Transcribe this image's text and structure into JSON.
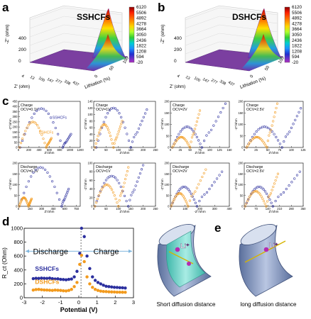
{
  "panel_labels": {
    "a": "a",
    "b": "b",
    "c": "c",
    "d": "d",
    "e": "e"
  },
  "colors": {
    "sshcfs": "#2b2f9e",
    "dshcfs": "#f29a1d",
    "surface": "#7b3fa0",
    "tube": "#8ea0c4",
    "tube_inner": "#6fd3c8",
    "arrow": "#7fb6de",
    "ion": "#b52bb0"
  },
  "surface_plots": [
    {
      "id": "a",
      "title": "SSHCFs",
      "zlabel": "-Z'' (ohm)",
      "zticks": [
        "0",
        "200",
        "400"
      ],
      "ylabel": "Z' (ohm)",
      "yticks": [
        "4",
        "13",
        "100",
        "147",
        "277",
        "338",
        "437"
      ],
      "xlabel": "Lithiation (%)",
      "xticks": [
        "0",
        "50",
        "100"
      ]
    },
    {
      "id": "b",
      "title": "DSHCFs",
      "zlabel": "-Z'' (ohm)",
      "zticks": [
        "0",
        "200",
        "400"
      ],
      "ylabel": "Z' (ohm)",
      "yticks": [
        "4",
        "13",
        "100",
        "147",
        "277",
        "338",
        "437"
      ],
      "xlabel": "Lithiation (%)",
      "xticks": [
        "0",
        "50",
        "100"
      ]
    }
  ],
  "colorbar": {
    "ticks": [
      "6120",
      "5506",
      "4892",
      "4278",
      "3664",
      "3050",
      "2436",
      "1822",
      "1208",
      "594",
      "-20"
    ],
    "colors": [
      "#8b0000",
      "#ff2000",
      "#ff8c00",
      "#ffd700",
      "#adff2f",
      "#32cd32",
      "#00ced1",
      "#1e90ff",
      "#2030d0",
      "#7b2bc0",
      "#b030c0"
    ]
  },
  "chart_data": [
    {
      "type": "scatter",
      "panel": "c1",
      "title": "Charge",
      "subtitle": "OCV=0.1V",
      "legend": [
        "SSHCFs",
        "DSHCFs"
      ],
      "xlabel": "Z'/ohm",
      "ylabel": "-Z''/ohm",
      "xlim": [
        0,
        1200
      ],
      "ylim": [
        0,
        450
      ],
      "xticks": [
        0,
        200,
        400,
        600,
        800,
        1000,
        1200
      ],
      "yticks": [
        0,
        50,
        100,
        150,
        200,
        250,
        300,
        350,
        400,
        450
      ],
      "series": [
        {
          "name": "SSHCFs",
          "arcs": [
            [
              30,
              860,
              380
            ],
            [
              860,
              1020,
              130
            ]
          ]
        },
        {
          "name": "DSHCFs",
          "arcs": [
            [
              20,
              540,
              250
            ],
            [
              540,
              640,
              90
            ]
          ]
        }
      ]
    },
    {
      "type": "scatter",
      "panel": "c2",
      "title": "Charge",
      "subtitle": "OCV=1V",
      "xlabel": "Z'/ohm",
      "ylabel": "-Z''/ohm",
      "xlim": [
        0,
        250
      ],
      "ylim": [
        0,
        140
      ],
      "xticks": [
        0,
        50,
        100,
        150,
        200,
        250
      ],
      "yticks": [
        0,
        20,
        40,
        60,
        80,
        100,
        120,
        140
      ],
      "series": [
        {
          "name": "SSHCFs",
          "arcs": [
            [
              10,
              150,
              120
            ],
            [
              150,
              215,
              115
            ]
          ]
        },
        {
          "name": "DSHCFs",
          "arcs": [
            [
              5,
              80,
              70
            ],
            [
              80,
              115,
              80
            ]
          ]
        }
      ]
    },
    {
      "type": "scatter",
      "panel": "c3",
      "title": "Charge",
      "subtitle": "OCV=2V",
      "xlabel": "Z'/ohm",
      "ylabel": "-Z''/ohm",
      "xlim": [
        0,
        150
      ],
      "ylim": [
        0,
        200
      ],
      "xticks": [
        0,
        25,
        50,
        75,
        100,
        125,
        150
      ],
      "yticks": [
        0,
        50,
        100,
        150,
        200
      ],
      "series": [
        {
          "name": "SSHCFs",
          "arcs": [
            [
              5,
              80,
              90
            ],
            [
              80,
              140,
              190
            ]
          ]
        },
        {
          "name": "DSHCFs",
          "arcs": [
            [
              5,
              50,
              45
            ],
            [
              50,
              75,
              160
            ]
          ]
        }
      ]
    },
    {
      "type": "scatter",
      "panel": "c4",
      "title": "Charge",
      "subtitle": "OCV=2.5V",
      "xlabel": "Z'/ohm",
      "ylabel": "-Z''/ohm",
      "xlim": [
        0,
        125
      ],
      "ylim": [
        0,
        200
      ],
      "xticks": [
        0,
        25,
        50,
        75,
        100,
        125
      ],
      "yticks": [
        0,
        50,
        100,
        150,
        200
      ],
      "series": [
        {
          "name": "SSHCFs",
          "arcs": [
            [
              5,
              80,
              90
            ],
            [
              80,
              120,
              170
            ]
          ]
        },
        {
          "name": "DSHCFs",
          "arcs": [
            [
              5,
              48,
              45
            ],
            [
              48,
              70,
              190
            ]
          ]
        }
      ]
    },
    {
      "type": "scatter",
      "panel": "c5",
      "title": "Discharge",
      "subtitle": "OCV=0.1V",
      "xlabel": "Z'/ohm",
      "ylabel": "-Z''/ohm",
      "xlim": [
        0,
        800
      ],
      "ylim": [
        0,
        200
      ],
      "xticks": [
        0,
        150,
        300,
        450,
        600,
        750
      ],
      "yticks": [
        0,
        50,
        100,
        150,
        200
      ],
      "series": [
        {
          "name": "SSHCFs",
          "arcs": [
            [
              10,
              560,
              180
            ],
            [
              560,
              650,
              80
            ]
          ]
        },
        {
          "name": "DSHCFs",
          "arcs": [
            [
              10,
              130,
              40
            ],
            [
              130,
              170,
              35
            ]
          ]
        }
      ]
    },
    {
      "type": "scatter",
      "panel": "c6",
      "title": "Discharge",
      "subtitle": "OCV=1V",
      "xlabel": "Z'/ohm",
      "ylabel": "-Z''/ohm",
      "xlim": [
        0,
        250
      ],
      "ylim": [
        0,
        100
      ],
      "xticks": [
        0,
        50,
        100,
        150,
        200,
        250
      ],
      "yticks": [
        0,
        20,
        40,
        60,
        80,
        100
      ],
      "series": [
        {
          "name": "SSHCFs",
          "arcs": [
            [
              5,
              140,
              70
            ],
            [
              140,
              200,
              95
            ]
          ]
        },
        {
          "name": "DSHCFs",
          "arcs": [
            [
              5,
              100,
              50
            ],
            [
              100,
              140,
              90
            ]
          ]
        }
      ]
    },
    {
      "type": "scatter",
      "panel": "c7",
      "title": "Discharge",
      "subtitle": "OCV=2V",
      "xlabel": "-Z''/ohm",
      "ylabel": "-Z''/ohm",
      "xlim": [
        0,
        400
      ],
      "ylim": [
        0,
        200
      ],
      "xticks": [
        0,
        100,
        200,
        300,
        400
      ],
      "yticks": [
        0,
        50,
        100,
        150,
        200
      ],
      "series": [
        {
          "name": "SSHCFs",
          "arcs": [
            [
              5,
              180,
              90
            ],
            [
              180,
              350,
              160
            ]
          ]
        },
        {
          "name": "DSHCFs",
          "arcs": [
            [
              5,
              120,
              60
            ],
            [
              120,
              240,
              170
            ]
          ]
        }
      ]
    },
    {
      "type": "scatter",
      "panel": "c8",
      "title": "Discharge",
      "subtitle": "OCV=2.5V",
      "xlabel": "Z'/ohm",
      "ylabel": "-Z''/ohm",
      "xlim": [
        0,
        350
      ],
      "ylim": [
        0,
        200
      ],
      "xticks": [
        0,
        70,
        140,
        210,
        280,
        350
      ],
      "yticks": [
        0,
        50,
        100,
        150,
        200
      ],
      "series": [
        {
          "name": "SSHCFs",
          "arcs": [
            [
              5,
              170,
              90
            ],
            [
              170,
              330,
              160
            ]
          ]
        },
        {
          "name": "DSHCFs",
          "arcs": [
            [
              5,
              130,
              70
            ],
            [
              130,
              200,
              150
            ]
          ]
        }
      ]
    },
    {
      "type": "scatter",
      "panel": "d",
      "xlabel": "Potential (V)",
      "ylabel": "R_ct (Ohm)",
      "xlim": [
        -3,
        3
      ],
      "ylim": [
        0,
        1000
      ],
      "xticks": [
        -3,
        -2,
        -1,
        0,
        1,
        2,
        3
      ],
      "yticks": [
        0,
        200,
        400,
        600,
        800,
        1000
      ],
      "annotations": [
        "Discharge",
        "Charge"
      ],
      "series": [
        {
          "name": "SSHCFs",
          "points": [
            [
              -2.5,
              275
            ],
            [
              -2.35,
              280
            ],
            [
              -2.2,
              278
            ],
            [
              -2.05,
              283
            ],
            [
              -1.9,
              280
            ],
            [
              -1.75,
              278
            ],
            [
              -1.6,
              282
            ],
            [
              -1.45,
              275
            ],
            [
              -1.3,
              270
            ],
            [
              -1.15,
              272
            ],
            [
              -1.0,
              265
            ],
            [
              -0.85,
              262
            ],
            [
              -0.7,
              258
            ],
            [
              -0.55,
              265
            ],
            [
              -0.4,
              270
            ],
            [
              -0.25,
              300
            ],
            [
              -0.1,
              380
            ],
            [
              0.05,
              640
            ],
            [
              0.15,
              1000
            ],
            [
              0.3,
              880
            ],
            [
              0.45,
              600
            ],
            [
              0.6,
              420
            ],
            [
              0.75,
              300
            ],
            [
              0.9,
              250
            ],
            [
              1.05,
              220
            ],
            [
              1.2,
              200
            ],
            [
              1.35,
              180
            ],
            [
              1.5,
              165
            ],
            [
              1.65,
              160
            ],
            [
              1.8,
              155
            ],
            [
              1.95,
              150
            ],
            [
              2.1,
              148
            ],
            [
              2.25,
              145
            ],
            [
              2.4,
              143
            ],
            [
              2.55,
              140
            ]
          ]
        },
        {
          "name": "DSHCFs",
          "points": [
            [
              -2.5,
              110
            ],
            [
              -2.35,
              118
            ],
            [
              -2.2,
              120
            ],
            [
              -2.05,
              115
            ],
            [
              -1.9,
              112
            ],
            [
              -1.75,
              110
            ],
            [
              -1.6,
              108
            ],
            [
              -1.45,
              105
            ],
            [
              -1.3,
              110
            ],
            [
              -1.15,
              108
            ],
            [
              -1.0,
              105
            ],
            [
              -0.85,
              100
            ],
            [
              -0.7,
              98
            ],
            [
              -0.55,
              105
            ],
            [
              -0.4,
              120
            ],
            [
              -0.25,
              160
            ],
            [
              -0.1,
              220
            ],
            [
              0.05,
              480
            ],
            [
              0.15,
              610
            ],
            [
              0.3,
              520
            ],
            [
              0.45,
              300
            ],
            [
              0.6,
              200
            ],
            [
              0.75,
              150
            ],
            [
              0.9,
              120
            ],
            [
              1.05,
              105
            ],
            [
              1.2,
              95
            ],
            [
              1.35,
              90
            ],
            [
              1.5,
              88
            ],
            [
              1.65,
              85
            ],
            [
              1.8,
              83
            ],
            [
              1.95,
              82
            ],
            [
              2.1,
              80
            ],
            [
              2.25,
              80
            ],
            [
              2.4,
              79
            ],
            [
              2.55,
              78
            ]
          ]
        }
      ]
    }
  ],
  "panel_e": {
    "left_caption": "Short diffusion distance",
    "right_caption": "long diffusion distance",
    "ion_label": "Li⁺"
  }
}
